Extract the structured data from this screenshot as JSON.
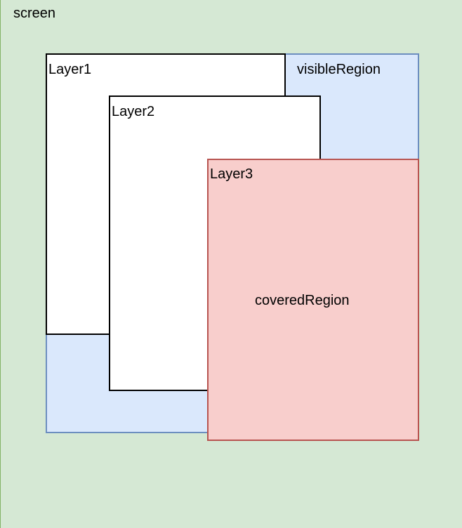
{
  "screen": {
    "label": "screen",
    "fill": "#d5e8d4",
    "stroke": "#82b366"
  },
  "visible_region": {
    "label": "visibleRegion",
    "fill": "#dae8fc",
    "stroke": "#6c8ebf"
  },
  "layer1": {
    "label": "Layer1",
    "fill": "#ffffff",
    "stroke": "#000000"
  },
  "layer2": {
    "label": "Layer2",
    "fill": "#ffffff",
    "stroke": "#000000"
  },
  "layer3": {
    "label": "Layer3",
    "fill": "#f8cecc",
    "stroke": "#b85450"
  },
  "covered_region": {
    "label": "coveredRegion"
  }
}
